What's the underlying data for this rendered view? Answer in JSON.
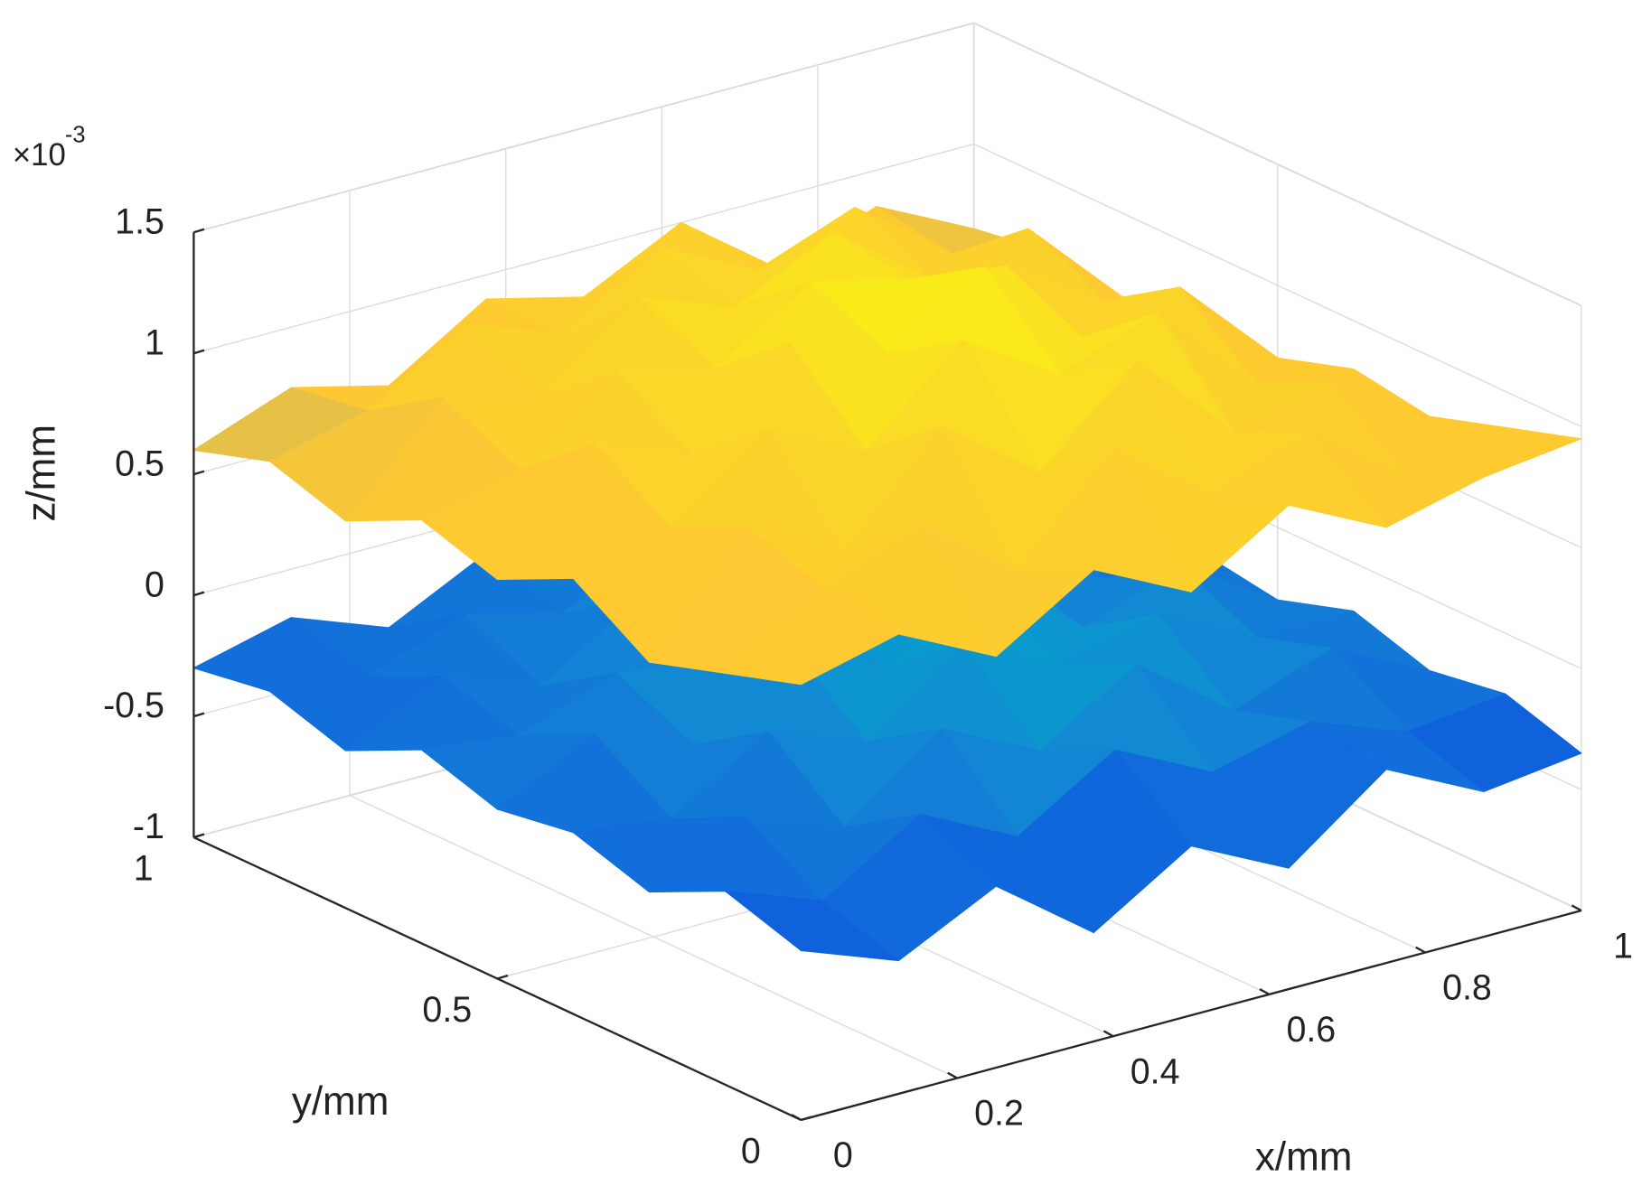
{
  "chart_data": {
    "type": "surface",
    "xlabel": "x/mm",
    "ylabel": "y/mm",
    "zlabel": "z/mm",
    "z_multiplier": {
      "base": "×10",
      "exponent": "-3"
    },
    "x": [
      0,
      0.125,
      0.25,
      0.375,
      0.5,
      0.625,
      0.75,
      0.875,
      1
    ],
    "y": [
      0,
      0.125,
      0.25,
      0.375,
      0.5,
      0.625,
      0.75,
      0.875,
      1
    ],
    "surfaces": [
      {
        "z": [
          [
            -0.3,
            -0.45,
            -0.25,
            -0.55,
            -0.3,
            -0.5,
            -0.2,
            -0.4,
            -0.35
          ],
          [
            -0.2,
            -0.35,
            -0.1,
            -0.3,
            -0.05,
            -0.25,
            -0.15,
            -0.3,
            -0.25
          ],
          [
            -0.35,
            -0.15,
            -0.3,
            0.0,
            -0.2,
            0.05,
            -0.25,
            -0.1,
            -0.3
          ],
          [
            -0.25,
            -0.3,
            -0.05,
            -0.2,
            0.1,
            -0.1,
            0.0,
            -0.2,
            -0.2
          ],
          [
            -0.3,
            -0.1,
            -0.25,
            0.05,
            -0.15,
            0.1,
            -0.2,
            -0.05,
            -0.3
          ],
          [
            -0.2,
            -0.25,
            -0.1,
            -0.15,
            0.0,
            -0.05,
            -0.1,
            -0.25,
            -0.25
          ],
          [
            -0.35,
            -0.15,
            -0.3,
            -0.05,
            -0.2,
            0.0,
            -0.25,
            -0.1,
            -0.3
          ],
          [
            -0.25,
            -0.3,
            -0.15,
            -0.25,
            -0.1,
            -0.2,
            -0.05,
            -0.3,
            -0.2
          ],
          [
            -0.3,
            -0.2,
            -0.35,
            -0.15,
            -0.3,
            -0.1,
            -0.25,
            -0.2,
            -0.35
          ]
        ]
      },
      {
        "z": [
          [
            0.8,
            0.9,
            0.7,
            0.95,
            0.75,
            1.0,
            0.8,
            0.9,
            0.95
          ],
          [
            0.7,
            0.95,
            1.1,
            0.8,
            1.2,
            0.9,
            1.05,
            0.75,
            0.85
          ],
          [
            0.6,
            1.05,
            0.85,
            1.25,
            0.95,
            1.3,
            0.9,
            1.0,
            0.75
          ],
          [
            0.8,
            0.9,
            1.2,
            1.0,
            1.35,
            1.1,
            1.25,
            0.85,
            0.8
          ],
          [
            0.65,
            1.1,
            0.95,
            1.3,
            1.15,
            1.4,
            1.0,
            1.1,
            0.7
          ],
          [
            0.75,
            0.85,
            1.15,
            1.05,
            1.3,
            1.2,
            1.15,
            0.9,
            0.75
          ],
          [
            0.6,
            1.0,
            0.9,
            1.2,
            1.05,
            1.25,
            0.95,
            1.05,
            0.65
          ],
          [
            0.7,
            0.8,
            1.05,
            0.9,
            1.15,
            0.95,
            1.1,
            0.8,
            0.7
          ],
          [
            0.6,
            0.75,
            0.65,
            0.9,
            0.8,
            1.0,
            0.7,
            0.85,
            0.65
          ]
        ]
      }
    ],
    "xlim": [
      0,
      1
    ],
    "ylim": [
      0,
      1
    ],
    "zlim": [
      -1,
      1.5
    ],
    "xticks": [
      0,
      0.2,
      0.4,
      0.6,
      0.8,
      1
    ],
    "yticks": [
      0,
      0.5,
      1
    ],
    "zticks": [
      -1,
      -0.5,
      0,
      0.5,
      1,
      1.5
    ],
    "grid": true,
    "colormap": "parula"
  }
}
